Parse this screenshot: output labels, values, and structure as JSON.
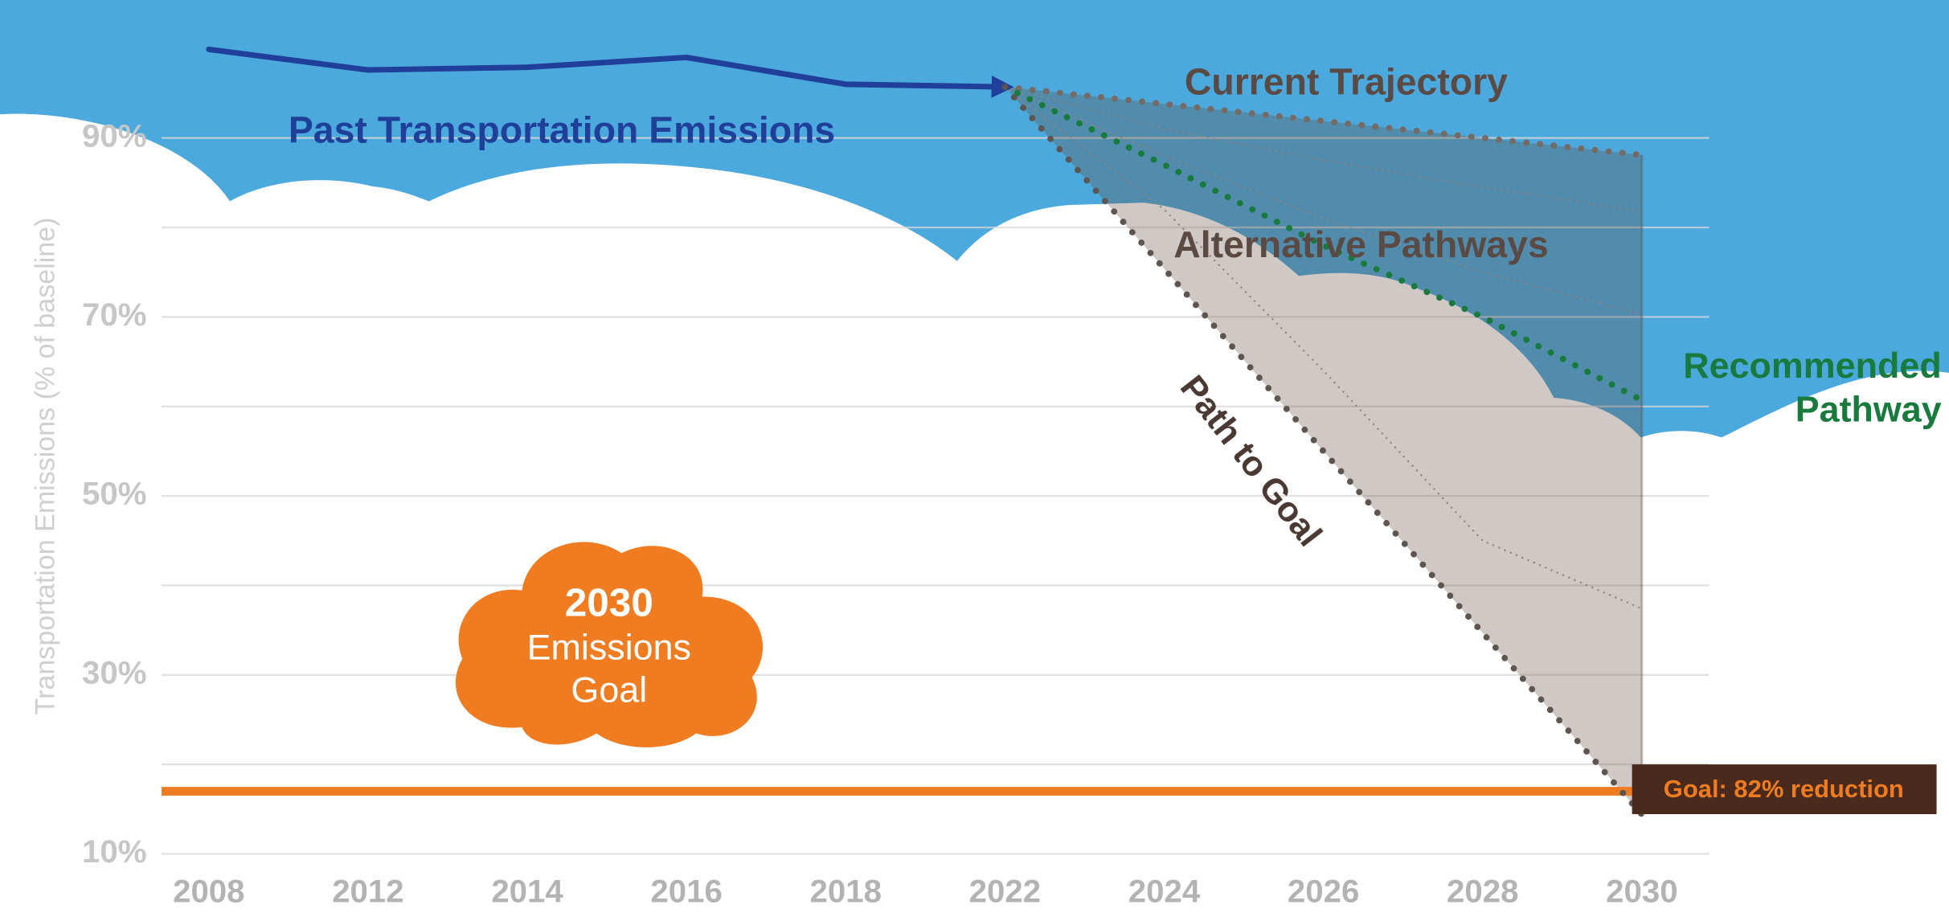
{
  "chart_data": {
    "type": "line",
    "y_label": "Transportation Emissions (% of baseline)",
    "categories": [
      "2008",
      "2012",
      "2014",
      "2016",
      "2018",
      "2022",
      "2024",
      "2026",
      "2028",
      "2030"
    ],
    "ylim": [
      10,
      105
    ],
    "yticks": [
      {
        "value": 10,
        "label": "10%"
      },
      {
        "value": 30,
        "label": "30%"
      },
      {
        "value": 50,
        "label": "50%"
      },
      {
        "value": 70,
        "label": "70%"
      },
      {
        "value": 90,
        "label": "90%"
      }
    ],
    "minor_grid": [
      20,
      40,
      60,
      80
    ],
    "grid": true,
    "series": [
      {
        "name": "Past Transportation Emissions",
        "color": "#1f3f99",
        "style": "solid",
        "values": [
          99.9,
          97.6,
          97.9,
          99,
          96,
          95.7,
          null,
          null,
          null,
          null
        ]
      },
      {
        "name": "Current Trajectory",
        "color": "#756a64",
        "style": "dotted",
        "values": [
          null,
          null,
          null,
          null,
          null,
          95.7,
          93.8,
          91.9,
          90,
          88.1
        ]
      },
      {
        "name": "Recommended Pathway",
        "color": "#187a3c",
        "style": "dotted",
        "values": [
          null,
          null,
          null,
          null,
          null,
          95.7,
          87,
          78,
          70,
          60.7
        ]
      },
      {
        "name": "Path to Goal",
        "color": "#5e5450",
        "style": "dotted",
        "values": [
          null,
          null,
          null,
          null,
          null,
          95.7,
          75.4,
          55,
          34.7,
          14.4
        ]
      }
    ],
    "alternative_pathways": {
      "label": "Alternative Pathways",
      "color": "#8d8480",
      "series": [
        {
          "values": [
            null,
            null,
            null,
            null,
            null,
            95.7,
            91,
            87.5,
            84.5,
            81.8
          ]
        },
        {
          "values": [
            null,
            null,
            null,
            null,
            null,
            95.7,
            88,
            81,
            75,
            70.3
          ]
        },
        {
          "values": [
            null,
            null,
            null,
            null,
            null,
            95.7,
            82,
            64,
            45,
            37.4
          ]
        }
      ]
    },
    "goal": {
      "value": 17,
      "label": "Goal: 82% reduction",
      "color": "#f07c22"
    },
    "goal_badge": [
      "2030",
      "Emissions",
      "Goal"
    ]
  }
}
